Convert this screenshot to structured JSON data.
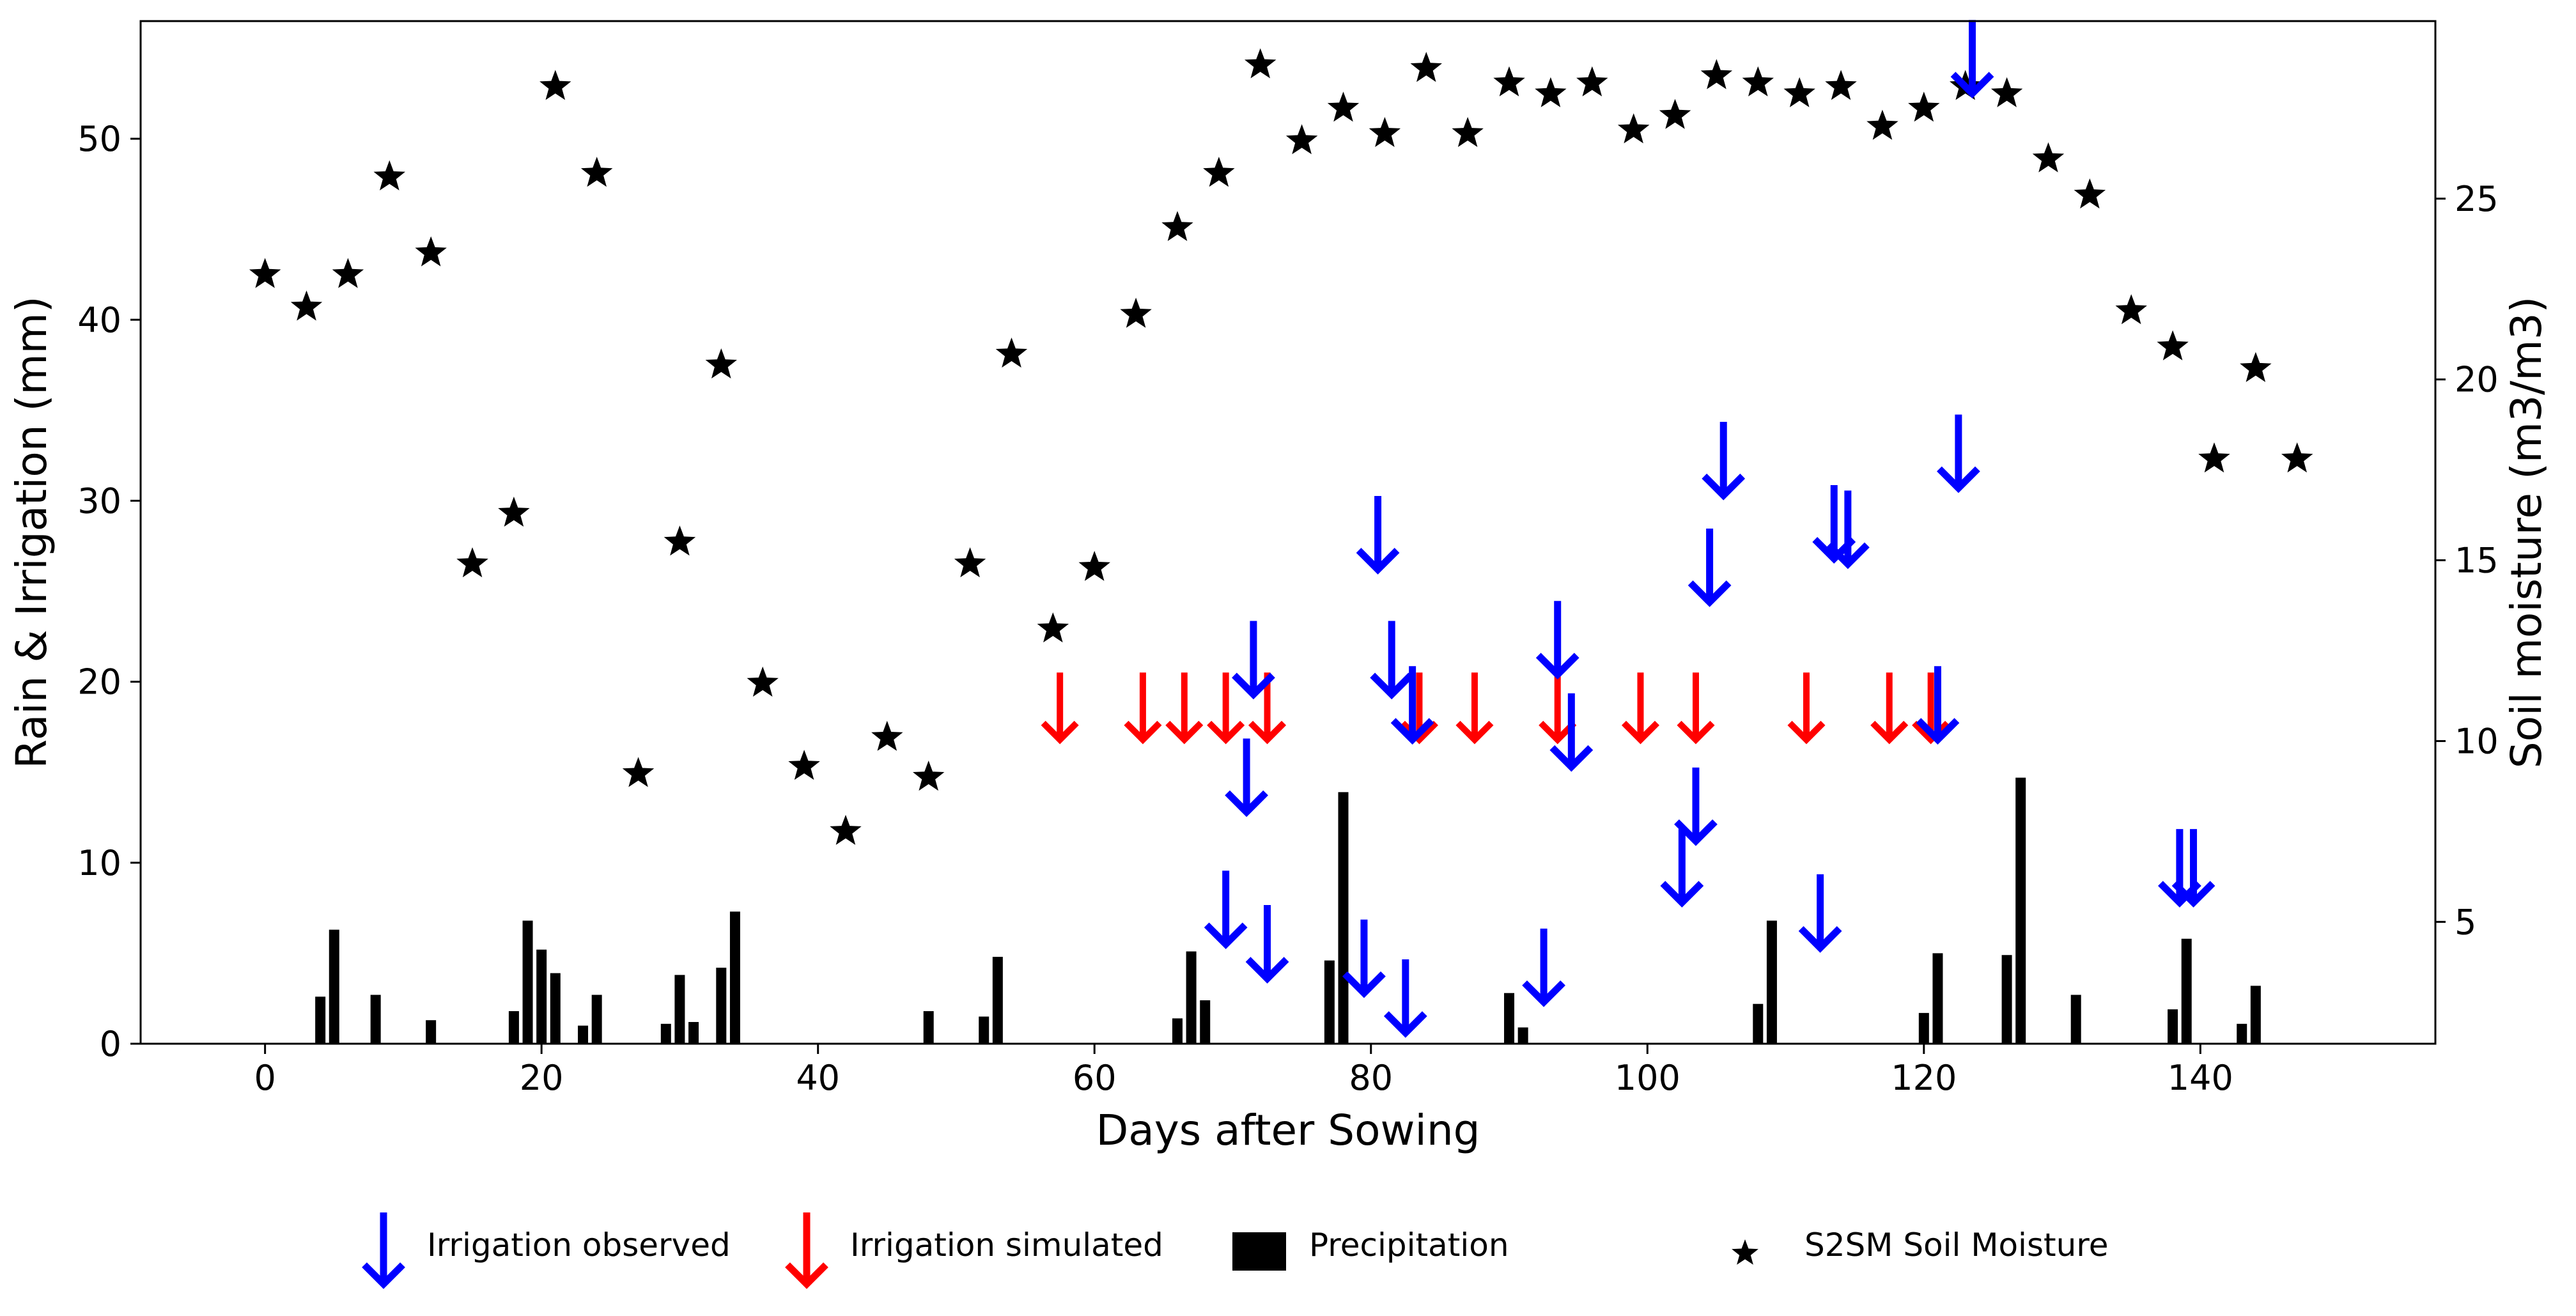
{
  "colors": {
    "observed": "#0000ff",
    "simulated": "#ff0000",
    "precipitation": "#000000",
    "soil_moisture": "#000000"
  },
  "chart_data": {
    "type": "bar",
    "title": "",
    "xlabel": "Days after Sowing",
    "ylabel": "Rain & Irrigation (mm)",
    "y2label": "Soil moisture (m3/m3)",
    "xlim": [
      -9,
      157
    ],
    "ylim": [
      0,
      56.5
    ],
    "y2lim": [
      1.63,
      29.91
    ],
    "xticks": [
      0,
      20,
      40,
      60,
      80,
      100,
      120,
      140
    ],
    "yticks": [
      0,
      10,
      20,
      30,
      40,
      50
    ],
    "y2ticks": [
      5,
      10,
      15,
      20,
      25
    ],
    "grid": false,
    "legend_position": "bottom",
    "legend": [
      {
        "key": "observed",
        "label": "Irrigation observed",
        "marker": "blue-arrow-icon"
      },
      {
        "key": "simulated",
        "label": "Irrigation simulated",
        "marker": "red-arrow-icon"
      },
      {
        "key": "precipitation",
        "label": "Precipitation",
        "marker": "black-square-icon"
      },
      {
        "key": "soil_moisture",
        "label": "S2SM Soil Moisture",
        "marker": "star-icon"
      }
    ],
    "series": [
      {
        "key": "precipitation",
        "type": "bar",
        "axis": "left",
        "points": [
          {
            "x": 4,
            "y": 2.6
          },
          {
            "x": 5,
            "y": 6.3
          },
          {
            "x": 8,
            "y": 2.7
          },
          {
            "x": 12,
            "y": 1.3
          },
          {
            "x": 18,
            "y": 1.8
          },
          {
            "x": 19,
            "y": 6.8
          },
          {
            "x": 20,
            "y": 5.2
          },
          {
            "x": 21,
            "y": 3.9
          },
          {
            "x": 23,
            "y": 1.0
          },
          {
            "x": 24,
            "y": 2.7
          },
          {
            "x": 29,
            "y": 1.1
          },
          {
            "x": 30,
            "y": 3.8
          },
          {
            "x": 31,
            "y": 1.2
          },
          {
            "x": 33,
            "y": 4.2
          },
          {
            "x": 34,
            "y": 7.3
          },
          {
            "x": 48,
            "y": 1.8
          },
          {
            "x": 52,
            "y": 1.5
          },
          {
            "x": 53,
            "y": 4.8
          },
          {
            "x": 66,
            "y": 1.4
          },
          {
            "x": 67,
            "y": 5.1
          },
          {
            "x": 68,
            "y": 2.4
          },
          {
            "x": 77,
            "y": 4.6
          },
          {
            "x": 78,
            "y": 13.9
          },
          {
            "x": 90,
            "y": 2.8
          },
          {
            "x": 91,
            "y": 0.9
          },
          {
            "x": 108,
            "y": 2.2
          },
          {
            "x": 109,
            "y": 6.8
          },
          {
            "x": 120,
            "y": 1.7
          },
          {
            "x": 121,
            "y": 5.0
          },
          {
            "x": 126,
            "y": 4.9
          },
          {
            "x": 127,
            "y": 14.7
          },
          {
            "x": 131,
            "y": 2.7
          },
          {
            "x": 138,
            "y": 1.9
          },
          {
            "x": 139,
            "y": 5.8
          },
          {
            "x": 143,
            "y": 1.1
          },
          {
            "x": 144,
            "y": 3.2
          }
        ]
      },
      {
        "key": "soil_moisture",
        "type": "scatter",
        "axis": "right",
        "points": [
          {
            "x": 0,
            "y": 22.9
          },
          {
            "x": 3,
            "y": 22.0
          },
          {
            "x": 6,
            "y": 22.9
          },
          {
            "x": 9,
            "y": 25.6
          },
          {
            "x": 12,
            "y": 23.5
          },
          {
            "x": 15,
            "y": 14.9
          },
          {
            "x": 18,
            "y": 16.3
          },
          {
            "x": 21,
            "y": 28.1
          },
          {
            "x": 24,
            "y": 25.7
          },
          {
            "x": 27,
            "y": 9.1
          },
          {
            "x": 30,
            "y": 15.5
          },
          {
            "x": 33,
            "y": 20.4
          },
          {
            "x": 36,
            "y": 11.6
          },
          {
            "x": 39,
            "y": 9.3
          },
          {
            "x": 42,
            "y": 7.5
          },
          {
            "x": 45,
            "y": 10.1
          },
          {
            "x": 48,
            "y": 9.0
          },
          {
            "x": 51,
            "y": 14.9
          },
          {
            "x": 54,
            "y": 20.7
          },
          {
            "x": 57,
            "y": 13.1
          },
          {
            "x": 60,
            "y": 14.8
          },
          {
            "x": 63,
            "y": 21.8
          },
          {
            "x": 66,
            "y": 24.2
          },
          {
            "x": 69,
            "y": 25.7
          },
          {
            "x": 72,
            "y": 28.7
          },
          {
            "x": 75,
            "y": 26.6
          },
          {
            "x": 78,
            "y": 27.5
          },
          {
            "x": 81,
            "y": 26.8
          },
          {
            "x": 84,
            "y": 28.6
          },
          {
            "x": 87,
            "y": 26.8
          },
          {
            "x": 90,
            "y": 28.2
          },
          {
            "x": 93,
            "y": 27.9
          },
          {
            "x": 96,
            "y": 28.2
          },
          {
            "x": 99,
            "y": 26.9
          },
          {
            "x": 102,
            "y": 27.3
          },
          {
            "x": 105,
            "y": 28.4
          },
          {
            "x": 108,
            "y": 28.2
          },
          {
            "x": 111,
            "y": 27.9
          },
          {
            "x": 114,
            "y": 28.1
          },
          {
            "x": 117,
            "y": 27.0
          },
          {
            "x": 120,
            "y": 27.5
          },
          {
            "x": 123,
            "y": 28.1
          },
          {
            "x": 126,
            "y": 27.9
          },
          {
            "x": 129,
            "y": 26.1
          },
          {
            "x": 132,
            "y": 25.1
          },
          {
            "x": 135,
            "y": 21.9
          },
          {
            "x": 138,
            "y": 20.9
          },
          {
            "x": 141,
            "y": 17.8
          },
          {
            "x": 144,
            "y": 20.3
          },
          {
            "x": 147,
            "y": 17.8
          }
        ]
      },
      {
        "key": "observed",
        "type": "arrow",
        "axis": "left",
        "points": [
          {
            "x": 69.5,
            "y": 5.5
          },
          {
            "x": 71,
            "y": 12.8
          },
          {
            "x": 71.5,
            "y": 19.3
          },
          {
            "x": 72.5,
            "y": 3.6
          },
          {
            "x": 79.5,
            "y": 2.8
          },
          {
            "x": 80.5,
            "y": 26.2
          },
          {
            "x": 81.5,
            "y": 19.3
          },
          {
            "x": 82.5,
            "y": 0.6
          },
          {
            "x": 83,
            "y": 16.8
          },
          {
            "x": 92.5,
            "y": 2.3
          },
          {
            "x": 93.5,
            "y": 20.4
          },
          {
            "x": 94.5,
            "y": 15.3
          },
          {
            "x": 102.5,
            "y": 7.8
          },
          {
            "x": 103.5,
            "y": 11.2
          },
          {
            "x": 104.5,
            "y": 24.4
          },
          {
            "x": 105.5,
            "y": 30.3
          },
          {
            "x": 112.5,
            "y": 5.3
          },
          {
            "x": 113.5,
            "y": 26.8
          },
          {
            "x": 114.5,
            "y": 26.5
          },
          {
            "x": 121,
            "y": 16.8
          },
          {
            "x": 122.5,
            "y": 30.7
          },
          {
            "x": 123.5,
            "y": 52.5
          },
          {
            "x": 138.5,
            "y": 7.8
          },
          {
            "x": 139.5,
            "y": 7.8
          }
        ]
      },
      {
        "key": "simulated",
        "type": "arrow",
        "axis": "left",
        "points": [
          {
            "x": 57.5,
            "y": 16.8
          },
          {
            "x": 63.5,
            "y": 16.8
          },
          {
            "x": 66.5,
            "y": 16.8
          },
          {
            "x": 69.5,
            "y": 16.8
          },
          {
            "x": 72.5,
            "y": 16.8
          },
          {
            "x": 83.5,
            "y": 16.8
          },
          {
            "x": 87.5,
            "y": 16.8
          },
          {
            "x": 93.5,
            "y": 16.8
          },
          {
            "x": 99.5,
            "y": 16.8
          },
          {
            "x": 103.5,
            "y": 16.8
          },
          {
            "x": 111.5,
            "y": 16.8
          },
          {
            "x": 117.5,
            "y": 16.8
          },
          {
            "x": 120.5,
            "y": 16.8
          }
        ]
      }
    ]
  }
}
